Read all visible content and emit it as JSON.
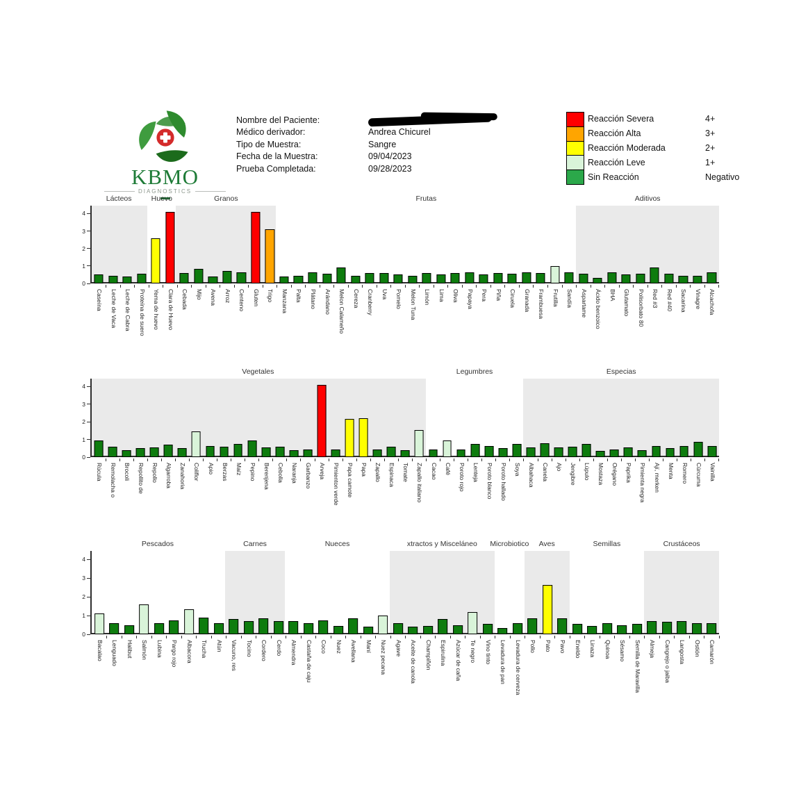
{
  "header": {
    "logo": {
      "brand": "KBMO",
      "sub": "DIAGNOSTICS"
    },
    "patient": {
      "fields": [
        {
          "label": "Nombre del Paciente:",
          "value": "",
          "redacted": true
        },
        {
          "label": "Médico derivador:",
          "value": "Andrea Chicurel",
          "redacted": false
        },
        {
          "label": "Tipo de Muestra:",
          "value": "Sangre",
          "redacted": false
        },
        {
          "label": "Fecha de la Muestra:",
          "value": "09/04/2023",
          "redacted": false
        },
        {
          "label": "Prueba Completada:",
          "value": "09/28/2023",
          "redacted": false
        }
      ]
    },
    "legend": {
      "items": [
        {
          "label": "Reacción Severa",
          "grade": "4+",
          "color": "#FF0000"
        },
        {
          "label": "Reacción Alta",
          "grade": "3+",
          "color": "#FFA500"
        },
        {
          "label": "Reacción Moderada",
          "grade": "2+",
          "color": "#FFFF00"
        },
        {
          "label": "Reacción Leve",
          "grade": "1+",
          "color": "#D9F4D9"
        },
        {
          "label": "Sin Reacción",
          "grade": "Negativo",
          "color": "#2BA84A"
        }
      ]
    }
  },
  "colors": {
    "severa": "#FF0000",
    "alta": "#FFA500",
    "moderada": "#FFFF00",
    "leve": "#D9F4D9",
    "none": "#0E7C0E",
    "shade": "#EAEAEA"
  },
  "chart_data": [
    {
      "type": "bar",
      "ylim": [
        0,
        4.45
      ],
      "yticks": [
        0,
        1,
        2,
        3,
        4
      ],
      "groups": [
        {
          "name": "Lácteos",
          "shaded": true,
          "items": [
            {
              "label": "Caseína",
              "value": 0.5,
              "level": "none"
            },
            {
              "label": "Leche de Vaca",
              "value": 0.45,
              "level": "none"
            },
            {
              "label": "Leche de Cabra",
              "value": 0.4,
              "level": "none"
            },
            {
              "label": "Proteína de suero",
              "value": 0.55,
              "level": "none"
            }
          ]
        },
        {
          "name": "Huevo",
          "shaded": false,
          "items": [
            {
              "label": "Yema de huevo",
              "value": 2.6,
              "level": "moderada"
            },
            {
              "label": "Clara de Huevo",
              "value": 4.1,
              "level": "severa"
            }
          ]
        },
        {
          "name": "Granos",
          "shaded": true,
          "items": [
            {
              "label": "Cebada",
              "value": 0.6,
              "level": "none"
            },
            {
              "label": "Mijo",
              "value": 0.85,
              "level": "none"
            },
            {
              "label": "Avena",
              "value": 0.4,
              "level": "none"
            },
            {
              "label": "Arroz",
              "value": 0.7,
              "level": "none"
            },
            {
              "label": "Centeno",
              "value": 0.65,
              "level": "none"
            },
            {
              "label": "Gluten",
              "value": 4.1,
              "level": "severa"
            },
            {
              "label": "Trigo",
              "value": 3.1,
              "level": "alta"
            }
          ]
        },
        {
          "name": "Frutas",
          "shaded": false,
          "items": [
            {
              "label": "Manzana",
              "value": 0.4,
              "level": "none"
            },
            {
              "label": "Palta",
              "value": 0.45,
              "level": "none"
            },
            {
              "label": "Plátano",
              "value": 0.65,
              "level": "none"
            },
            {
              "label": "Arándano",
              "value": 0.55,
              "level": "none"
            },
            {
              "label": "Melon Calameño",
              "value": 0.9,
              "level": "none"
            },
            {
              "label": "Cereza",
              "value": 0.45,
              "level": "none"
            },
            {
              "label": "Cranberry",
              "value": 0.6,
              "level": "none"
            },
            {
              "label": "Uva",
              "value": 0.6,
              "level": "none"
            },
            {
              "label": "Pomelo",
              "value": 0.5,
              "level": "none"
            },
            {
              "label": "Melon Tuna",
              "value": 0.45,
              "level": "none"
            },
            {
              "label": "Limón",
              "value": 0.6,
              "level": "none"
            },
            {
              "label": "Lima",
              "value": 0.5,
              "level": "none"
            },
            {
              "label": "Oliva",
              "value": 0.6,
              "level": "none"
            },
            {
              "label": "Papaya",
              "value": 0.65,
              "level": "none"
            },
            {
              "label": "Pera",
              "value": 0.5,
              "level": "none"
            },
            {
              "label": "Piña",
              "value": 0.6,
              "level": "none"
            },
            {
              "label": "Ciruela",
              "value": 0.55,
              "level": "none"
            },
            {
              "label": "Granada",
              "value": 0.65,
              "level": "none"
            },
            {
              "label": "Frambuesa",
              "value": 0.6,
              "level": "none"
            },
            {
              "label": "Frutilla",
              "value": 1.0,
              "level": "leve"
            },
            {
              "label": "Sandía",
              "value": 0.65,
              "level": "none"
            }
          ]
        },
        {
          "name": "Aditivos",
          "shaded": true,
          "items": [
            {
              "label": "Aspartame",
              "value": 0.55,
              "level": "none"
            },
            {
              "label": "Ácido benzoico",
              "value": 0.3,
              "level": "none"
            },
            {
              "label": "BHA",
              "value": 0.65,
              "level": "none"
            },
            {
              "label": "Glutamato",
              "value": 0.5,
              "level": "none"
            },
            {
              "label": "Polisorbato 80",
              "value": 0.55,
              "level": "none"
            },
            {
              "label": "Red #3",
              "value": 0.9,
              "level": "none"
            },
            {
              "label": "Red #40",
              "value": 0.55,
              "level": "none"
            },
            {
              "label": "Sacarina",
              "value": 0.45,
              "level": "none"
            },
            {
              "label": "Vinagre",
              "value": 0.45,
              "level": "none"
            },
            {
              "label": "Alcachofa",
              "value": 0.65,
              "level": "none"
            }
          ]
        }
      ]
    },
    {
      "type": "bar",
      "ylim": [
        0,
        4.45
      ],
      "yticks": [
        0,
        1,
        2,
        3,
        4
      ],
      "groups": [
        {
          "name": "Vegetales",
          "shaded": true,
          "items": [
            {
              "label": "Rúcula",
              "value": 0.95,
              "level": "none"
            },
            {
              "label": "Remolacha o",
              "value": 0.6,
              "level": "none"
            },
            {
              "label": "Brocoli",
              "value": 0.4,
              "level": "none"
            },
            {
              "label": "Repollito de",
              "value": 0.5,
              "level": "none"
            },
            {
              "label": "Repollo",
              "value": 0.55,
              "level": "none"
            },
            {
              "label": "Algarroba",
              "value": 0.7,
              "level": "none"
            },
            {
              "label": "Zanahoria",
              "value": 0.5,
              "level": "none"
            },
            {
              "label": "Coliflor",
              "value": 1.45,
              "level": "leve"
            },
            {
              "label": "Apio",
              "value": 0.65,
              "level": "none"
            },
            {
              "label": "Berzas",
              "value": 0.6,
              "level": "none"
            },
            {
              "label": "Maíz",
              "value": 0.75,
              "level": "none"
            },
            {
              "label": "Pepino",
              "value": 0.95,
              "level": "none"
            },
            {
              "label": "Berenjena",
              "value": 0.55,
              "level": "none"
            },
            {
              "label": "Cebolla",
              "value": 0.6,
              "level": "none"
            },
            {
              "label": "Naranja",
              "value": 0.4,
              "level": "none"
            },
            {
              "label": "Garbanzo",
              "value": 0.45,
              "level": "none"
            },
            {
              "label": "Arveja",
              "value": 4.1,
              "level": "severa"
            },
            {
              "label": "Pimienton verde",
              "value": 0.45,
              "level": "none"
            },
            {
              "label": "Papa camote",
              "value": 2.15,
              "level": "moderada"
            },
            {
              "label": "Papa",
              "value": 2.2,
              "level": "moderada"
            },
            {
              "label": "Zapallo",
              "value": 0.45,
              "level": "none"
            },
            {
              "label": "Espinaca",
              "value": 0.6,
              "level": "none"
            },
            {
              "label": "Tomate",
              "value": 0.4,
              "level": "none"
            },
            {
              "label": "Zapallo italiano",
              "value": 1.55,
              "level": "leve"
            }
          ]
        },
        {
          "name": "Legumbres",
          "shaded": false,
          "items": [
            {
              "label": "Cacao",
              "value": 0.45,
              "level": "none"
            },
            {
              "label": "Café",
              "value": 0.95,
              "level": "leve"
            },
            {
              "label": "Poroto rojo",
              "value": 0.45,
              "level": "none"
            },
            {
              "label": "Lenteja",
              "value": 0.75,
              "level": "none"
            },
            {
              "label": "Poroto blanco",
              "value": 0.65,
              "level": "none"
            },
            {
              "label": "Poroto hallado",
              "value": 0.5,
              "level": "none"
            },
            {
              "label": "Soya",
              "value": 0.75,
              "level": "none"
            }
          ]
        },
        {
          "name": "Especias",
          "shaded": true,
          "items": [
            {
              "label": "Albahaca",
              "value": 0.55,
              "level": "none"
            },
            {
              "label": "Canela",
              "value": 0.8,
              "level": "none"
            },
            {
              "label": "Ajo",
              "value": 0.55,
              "level": "none"
            },
            {
              "label": "Jengibre",
              "value": 0.6,
              "level": "none"
            },
            {
              "label": "Lúpulo",
              "value": 0.75,
              "level": "none"
            },
            {
              "label": "Mostaza",
              "value": 0.35,
              "level": "none"
            },
            {
              "label": "Orégano",
              "value": 0.45,
              "level": "none"
            },
            {
              "label": "Paprika",
              "value": 0.55,
              "level": "none"
            },
            {
              "label": "Pimienta negra",
              "value": 0.4,
              "level": "none"
            },
            {
              "label": "Ají, merken",
              "value": 0.65,
              "level": "none"
            },
            {
              "label": "Menta",
              "value": 0.5,
              "level": "none"
            },
            {
              "label": "Romero",
              "value": 0.65,
              "level": "none"
            },
            {
              "label": "Cúrcuma",
              "value": 0.85,
              "level": "none"
            },
            {
              "label": "Vainilla",
              "value": 0.65,
              "level": "none"
            }
          ]
        }
      ]
    },
    {
      "type": "bar",
      "ylim": [
        0,
        4.45
      ],
      "yticks": [
        0,
        1,
        2,
        3,
        4
      ],
      "groups": [
        {
          "name": "Pescados",
          "shaded": false,
          "items": [
            {
              "label": "Bacalao",
              "value": 1.1,
              "level": "leve"
            },
            {
              "label": "Lenguado",
              "value": 0.6,
              "level": "none"
            },
            {
              "label": "Halibut",
              "value": 0.5,
              "level": "none"
            },
            {
              "label": "Salmón",
              "value": 1.6,
              "level": "leve"
            },
            {
              "label": "Lubina",
              "value": 0.6,
              "level": "none"
            },
            {
              "label": "Pargo rojo",
              "value": 0.75,
              "level": "none"
            },
            {
              "label": "Albacora",
              "value": 1.35,
              "level": "leve"
            },
            {
              "label": "Trucha",
              "value": 0.9,
              "level": "none"
            },
            {
              "label": "Atún",
              "value": 0.6,
              "level": "none"
            }
          ]
        },
        {
          "name": "Carnes",
          "shaded": true,
          "items": [
            {
              "label": "Vacuno, res",
              "value": 0.8,
              "level": "none"
            },
            {
              "label": "Tocino",
              "value": 0.7,
              "level": "none"
            },
            {
              "label": "Cordero",
              "value": 0.85,
              "level": "none"
            },
            {
              "label": "Cerdo",
              "value": 0.7,
              "level": "none"
            }
          ]
        },
        {
          "name": "Nueces",
          "shaded": false,
          "items": [
            {
              "label": "Almendra",
              "value": 0.7,
              "level": "none"
            },
            {
              "label": "Castaña de caju",
              "value": 0.6,
              "level": "none"
            },
            {
              "label": "Coco",
              "value": 0.75,
              "level": "none"
            },
            {
              "label": "Nuez",
              "value": 0.45,
              "level": "none"
            },
            {
              "label": "Avellana",
              "value": 0.85,
              "level": "none"
            },
            {
              "label": "Maní",
              "value": 0.4,
              "level": "none"
            },
            {
              "label": "Nuez pecana",
              "value": 1.0,
              "level": "leve"
            }
          ]
        },
        {
          "name": "xtractos y Misceláneo",
          "shaded": true,
          "items": [
            {
              "label": "Agave",
              "value": 0.6,
              "level": "none"
            },
            {
              "label": "Aceite de canola",
              "value": 0.4,
              "level": "none"
            },
            {
              "label": "Champiñón",
              "value": 0.45,
              "level": "none"
            },
            {
              "label": "Espirulina",
              "value": 0.8,
              "level": "none"
            },
            {
              "label": "Azúcar de caña",
              "value": 0.5,
              "level": "none"
            },
            {
              "label": "Te negro",
              "value": 1.2,
              "level": "leve"
            },
            {
              "label": "Vino tinto",
              "value": 0.55,
              "level": "none"
            }
          ]
        },
        {
          "name": "Microbiotico",
          "shaded": false,
          "items": [
            {
              "label": "Levadura de pan",
              "value": 0.35,
              "level": "none"
            },
            {
              "label": "Levadura de cerveza",
              "value": 0.6,
              "level": "none"
            }
          ]
        },
        {
          "name": "Aves",
          "shaded": true,
          "items": [
            {
              "label": "Pollo",
              "value": 0.85,
              "level": "none"
            },
            {
              "label": "Pato",
              "value": 2.65,
              "level": "moderada"
            },
            {
              "label": "Pavo",
              "value": 0.85,
              "level": "none"
            }
          ]
        },
        {
          "name": "Semillas",
          "shaded": false,
          "items": [
            {
              "label": "Eneldo",
              "value": 0.55,
              "level": "none"
            },
            {
              "label": "Linaza",
              "value": 0.45,
              "level": "none"
            },
            {
              "label": "Quinoa",
              "value": 0.6,
              "level": "none"
            },
            {
              "label": "Sésamo",
              "value": 0.5,
              "level": "none"
            },
            {
              "label": "Semilla de Maravilla",
              "value": 0.55,
              "level": "none"
            }
          ]
        },
        {
          "name": "Crustáceos",
          "shaded": true,
          "items": [
            {
              "label": "Almeja",
              "value": 0.7,
              "level": "none"
            },
            {
              "label": "Cangrejo o jaiba",
              "value": 0.65,
              "level": "none"
            },
            {
              "label": "Langosta",
              "value": 0.7,
              "level": "none"
            },
            {
              "label": "Ostión",
              "value": 0.6,
              "level": "none"
            },
            {
              "label": "Camarón",
              "value": 0.6,
              "level": "none"
            }
          ]
        }
      ]
    }
  ]
}
